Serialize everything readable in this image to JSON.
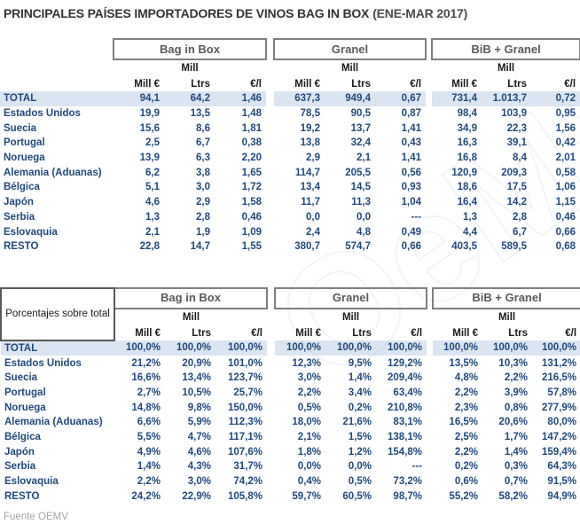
{
  "title": {
    "main": "PRINCIPALES PAÍSES IMPORTADORES DE VINOS BAG IN BOX",
    "period": "(ENE-MAR 2017)"
  },
  "headers": {
    "groups": [
      "Bag in Box",
      "Granel",
      "BiB + Granel"
    ],
    "mill": "Mill",
    "mill_eur": "Mill €",
    "ltrs": "Ltrs",
    "eur_per_l": "€/l"
  },
  "watermark": "OeMv",
  "footer": {
    "source": "Fuente OEMV"
  },
  "colors": {
    "data_text_navy": "#1F497D",
    "total_row_bg": "#DBE5F1",
    "group_box_border": "#7F7F7F",
    "group_header_text": "#595959",
    "header_text": "#1A1A1A",
    "source_gray": "#A3A3A3"
  },
  "chart_data": [
    {
      "type": "table",
      "name": "absolute-values",
      "corner_label": "",
      "column_groups": [
        "Bag in Box",
        "Granel",
        "BiB + Granel"
      ],
      "columns": [
        "Mill €",
        "Mill Ltrs",
        "€/l",
        "Mill €",
        "Mill Ltrs",
        "€/l",
        "Mill €",
        "Mill Ltrs",
        "€/l"
      ],
      "rows": [
        {
          "label": "TOTAL",
          "total": true,
          "values": [
            "94,1",
            "64,2",
            "1,46",
            "637,3",
            "949,4",
            "0,67",
            "731,4",
            "1.013,7",
            "0,72"
          ]
        },
        {
          "label": "Estados Unidos",
          "total": false,
          "values": [
            "19,9",
            "13,5",
            "1,48",
            "78,5",
            "90,5",
            "0,87",
            "98,4",
            "103,9",
            "0,95"
          ]
        },
        {
          "label": "Suecia",
          "total": false,
          "values": [
            "15,6",
            "8,6",
            "1,81",
            "19,2",
            "13,7",
            "1,41",
            "34,9",
            "22,3",
            "1,56"
          ]
        },
        {
          "label": "Portugal",
          "total": false,
          "values": [
            "2,5",
            "6,7",
            "0,38",
            "13,8",
            "32,4",
            "0,43",
            "16,3",
            "39,1",
            "0,42"
          ]
        },
        {
          "label": "Noruega",
          "total": false,
          "values": [
            "13,9",
            "6,3",
            "2,20",
            "2,9",
            "2,1",
            "1,41",
            "16,8",
            "8,4",
            "2,01"
          ]
        },
        {
          "label": "Alemania (Aduanas)",
          "total": false,
          "values": [
            "6,2",
            "3,8",
            "1,65",
            "114,7",
            "205,5",
            "0,56",
            "120,9",
            "209,3",
            "0,58"
          ]
        },
        {
          "label": "Bélgica",
          "total": false,
          "values": [
            "5,1",
            "3,0",
            "1,72",
            "13,4",
            "14,5",
            "0,93",
            "18,6",
            "17,5",
            "1,06"
          ]
        },
        {
          "label": "Japón",
          "total": false,
          "values": [
            "4,6",
            "2,9",
            "1,58",
            "11,7",
            "11,3",
            "1,04",
            "16,4",
            "14,2",
            "1,15"
          ]
        },
        {
          "label": "Serbia",
          "total": false,
          "values": [
            "1,3",
            "2,8",
            "0,46",
            "0,0",
            "0,0",
            "---",
            "1,3",
            "2,8",
            "0,46"
          ]
        },
        {
          "label": "Eslovaquia",
          "total": false,
          "values": [
            "2,1",
            "1,9",
            "1,09",
            "2,4",
            "4,8",
            "0,49",
            "4,4",
            "6,7",
            "0,66"
          ]
        },
        {
          "label": "RESTO",
          "total": false,
          "values": [
            "22,8",
            "14,7",
            "1,55",
            "380,7",
            "574,7",
            "0,66",
            "403,5",
            "589,5",
            "0,68"
          ]
        }
      ]
    },
    {
      "type": "table",
      "name": "percentages-over-total",
      "corner_label": "Porcentajes sobre total",
      "column_groups": [
        "Bag in Box",
        "Granel",
        "BiB + Granel"
      ],
      "columns": [
        "Mill €",
        "Mill Ltrs",
        "€/l",
        "Mill €",
        "Mill Ltrs",
        "€/l",
        "Mill €",
        "Mill Ltrs",
        "€/l"
      ],
      "rows": [
        {
          "label": "TOTAL",
          "total": true,
          "values": [
            "100,0%",
            "100,0%",
            "100,0%",
            "100,0%",
            "100,0%",
            "100,0%",
            "100,0%",
            "100,0%",
            "100,0%"
          ]
        },
        {
          "label": "Estados Unidos",
          "total": false,
          "values": [
            "21,2%",
            "20,9%",
            "101,0%",
            "12,3%",
            "9,5%",
            "129,2%",
            "13,5%",
            "10,3%",
            "131,2%"
          ]
        },
        {
          "label": "Suecia",
          "total": false,
          "values": [
            "16,6%",
            "13,4%",
            "123,7%",
            "3,0%",
            "1,4%",
            "209,4%",
            "4,8%",
            "2,2%",
            "216,5%"
          ]
        },
        {
          "label": "Portugal",
          "total": false,
          "values": [
            "2,7%",
            "10,5%",
            "25,7%",
            "2,2%",
            "3,4%",
            "63,4%",
            "2,2%",
            "3,9%",
            "57,8%"
          ]
        },
        {
          "label": "Noruega",
          "total": false,
          "values": [
            "14,8%",
            "9,8%",
            "150,0%",
            "0,5%",
            "0,2%",
            "210,8%",
            "2,3%",
            "0,8%",
            "277,9%"
          ]
        },
        {
          "label": "Alemania (Aduanas)",
          "total": false,
          "values": [
            "6,6%",
            "5,9%",
            "112,3%",
            "18,0%",
            "21,6%",
            "83,1%",
            "16,5%",
            "20,6%",
            "80,0%"
          ]
        },
        {
          "label": "Bélgica",
          "total": false,
          "values": [
            "5,5%",
            "4,7%",
            "117,1%",
            "2,1%",
            "1,5%",
            "138,1%",
            "2,5%",
            "1,7%",
            "147,2%"
          ]
        },
        {
          "label": "Japón",
          "total": false,
          "values": [
            "4,9%",
            "4,6%",
            "107,6%",
            "1,8%",
            "1,2%",
            "154,8%",
            "2,2%",
            "1,4%",
            "159,4%"
          ]
        },
        {
          "label": "Serbia",
          "total": false,
          "values": [
            "1,4%",
            "4,3%",
            "31,7%",
            "0,0%",
            "0,0%",
            "---",
            "0,2%",
            "0,3%",
            "64,3%"
          ]
        },
        {
          "label": "Eslovaquia",
          "total": false,
          "values": [
            "2,2%",
            "3,0%",
            "74,2%",
            "0,4%",
            "0,5%",
            "73,2%",
            "0,6%",
            "0,7%",
            "91,5%"
          ]
        },
        {
          "label": "RESTO",
          "total": false,
          "values": [
            "24,2%",
            "22,9%",
            "105,8%",
            "59,7%",
            "60,5%",
            "98,7%",
            "55,2%",
            "58,2%",
            "94,9%"
          ]
        }
      ]
    }
  ]
}
